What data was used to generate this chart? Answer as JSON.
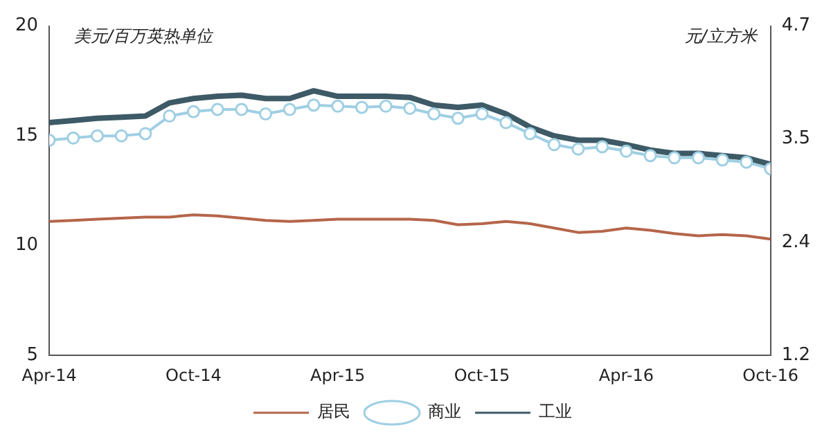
{
  "chart_data": {
    "type": "line",
    "ylabel": "美元/百万英热单位",
    "y2label": "元/立方米",
    "x": [
      "2014-04",
      "2014-05",
      "2014-06",
      "2014-07",
      "2014-08",
      "2014-09",
      "2014-10",
      "2014-11",
      "2014-12",
      "2015-01",
      "2015-02",
      "2015-03",
      "2015-04",
      "2015-05",
      "2015-06",
      "2015-07",
      "2015-08",
      "2015-09",
      "2015-10",
      "2015-11",
      "2015-12",
      "2016-01",
      "2016-02",
      "2016-03",
      "2016-04",
      "2016-05",
      "2016-06",
      "2016-07",
      "2016-08",
      "2016-09",
      "2016-10"
    ],
    "series": [
      {
        "name": "居民",
        "color": "#b5654a",
        "marker": "none",
        "values": [
          11.1,
          11.15,
          11.2,
          11.25,
          11.3,
          11.3,
          11.4,
          11.35,
          11.25,
          11.15,
          11.1,
          11.15,
          11.2,
          11.2,
          11.2,
          11.2,
          11.15,
          10.95,
          11.0,
          11.1,
          11.0,
          10.8,
          10.6,
          10.65,
          10.8,
          10.7,
          10.55,
          10.45,
          10.5,
          10.45,
          10.3
        ]
      },
      {
        "name": "商业",
        "color": "#9fcfe3",
        "marker": "circle",
        "values": [
          14.8,
          14.9,
          15.0,
          15.0,
          15.1,
          15.9,
          16.1,
          16.2,
          16.2,
          16.0,
          16.2,
          16.4,
          16.35,
          16.3,
          16.35,
          16.25,
          16.0,
          15.8,
          16.0,
          15.6,
          15.1,
          14.6,
          14.4,
          14.5,
          14.3,
          14.1,
          14.0,
          14.0,
          13.9,
          13.8,
          13.5
        ]
      },
      {
        "name": "工业",
        "color": "#3d5a66",
        "marker": "none",
        "values": [
          15.6,
          15.7,
          15.8,
          15.85,
          15.9,
          16.5,
          16.7,
          16.8,
          16.85,
          16.7,
          16.7,
          17.05,
          16.8,
          16.8,
          16.8,
          16.75,
          16.4,
          16.3,
          16.4,
          16.0,
          15.4,
          15.0,
          14.8,
          14.8,
          14.6,
          14.35,
          14.2,
          14.2,
          14.1,
          14.0,
          13.7
        ]
      }
    ],
    "xlim": [
      "2014-04",
      "2016-10"
    ],
    "xticks": [
      {
        "value": "2014-04",
        "label": "Apr-14"
      },
      {
        "value": "2014-10",
        "label": "Oct-14"
      },
      {
        "value": "2015-04",
        "label": "Apr-15"
      },
      {
        "value": "2015-10",
        "label": "Oct-15"
      },
      {
        "value": "2016-04",
        "label": "Apr-16"
      },
      {
        "value": "2016-10",
        "label": "Oct-16"
      }
    ],
    "ylim": [
      5,
      20
    ],
    "yticks": [
      5,
      10,
      15,
      20
    ],
    "y2lim": [
      1.2,
      4.7
    ],
    "y2ticks": [
      1.2,
      2.4,
      3.5,
      4.7
    ],
    "grid": false,
    "legend": "bottom"
  }
}
